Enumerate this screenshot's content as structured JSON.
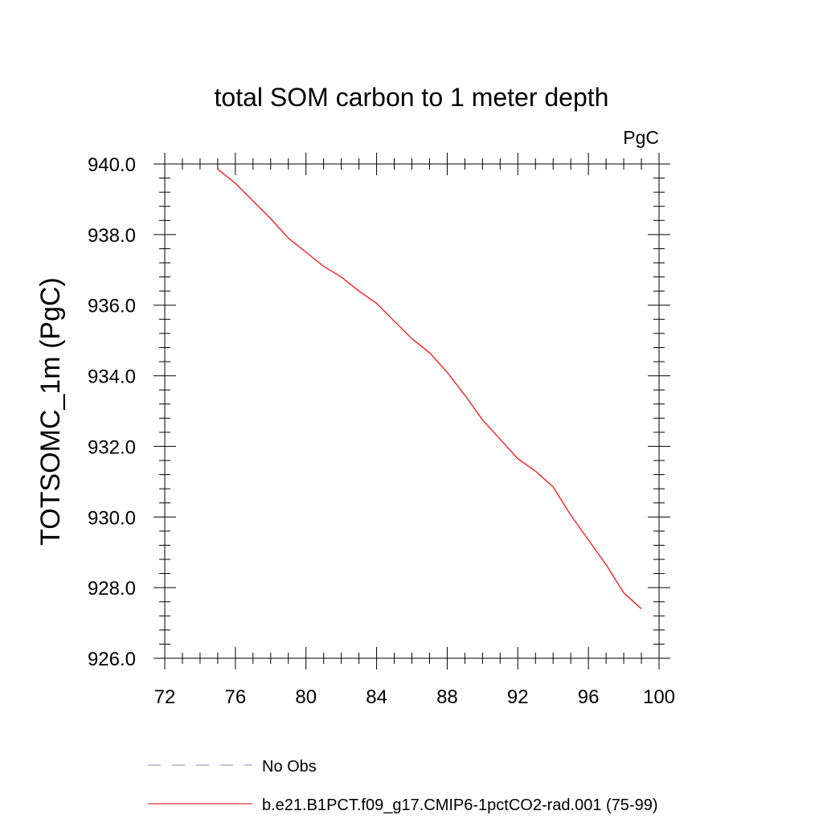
{
  "chart_data": {
    "type": "line",
    "title": "total SOM carbon to 1 meter depth",
    "units_label": "PgC",
    "ylabel": "TOTSOMC_1m  (PgC)",
    "xlabel": "",
    "xlim": [
      72,
      100
    ],
    "ylim": [
      926.0,
      940.0
    ],
    "x_ticks": [
      72,
      76,
      80,
      84,
      88,
      92,
      96,
      100
    ],
    "x_tick_labels": [
      "72",
      "76",
      "80",
      "84",
      "88",
      "92",
      "96",
      "100"
    ],
    "y_ticks": [
      926.0,
      928.0,
      930.0,
      932.0,
      934.0,
      936.0,
      938.0,
      940.0
    ],
    "y_tick_labels": [
      "926.0",
      "928.0",
      "930.0",
      "932.0",
      "934.0",
      "936.0",
      "938.0",
      "940.0"
    ],
    "grid": false,
    "legend_position": "bottom",
    "series": [
      {
        "name": "No Obs",
        "color": "#8080c0",
        "dash": "dashed",
        "x": [],
        "y": []
      },
      {
        "name": "b.e21.B1PCT.f09_g17.CMIP6-1pctCO2-rad.001 (75-99)",
        "color": "#ff0000",
        "dash": "solid",
        "x": [
          75,
          76,
          77,
          78,
          79,
          80,
          81,
          82,
          83,
          84,
          85,
          86,
          87,
          88,
          89,
          90,
          91,
          92,
          93,
          94,
          95,
          96,
          97,
          98,
          99
        ],
        "y": [
          939.85,
          939.45,
          938.95,
          938.45,
          937.9,
          937.5,
          937.1,
          936.8,
          936.4,
          936.05,
          935.55,
          935.05,
          934.65,
          934.1,
          933.45,
          932.75,
          932.2,
          931.65,
          931.3,
          930.85,
          930.05,
          929.35,
          928.65,
          927.85,
          927.4
        ]
      }
    ]
  }
}
